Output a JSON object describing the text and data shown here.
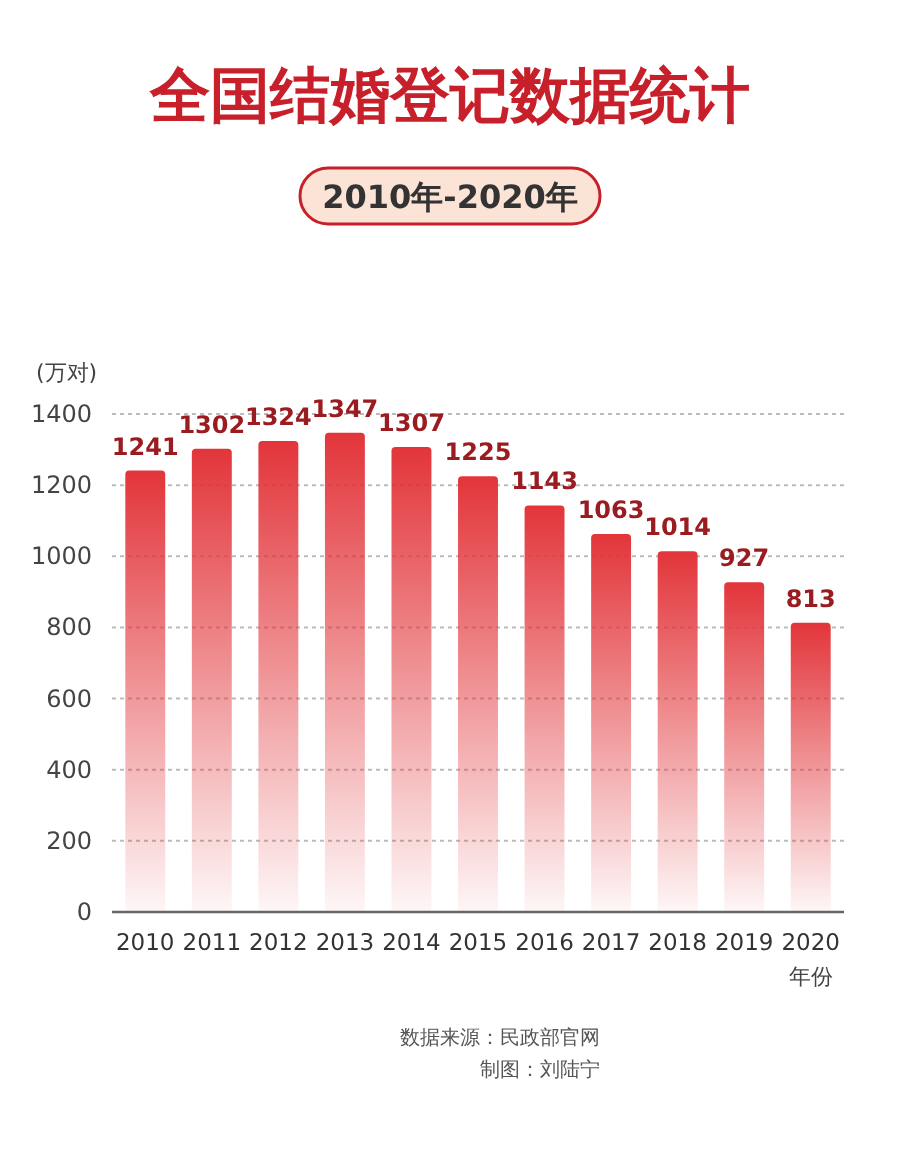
{
  "chart_data": {
    "type": "bar",
    "title": "全国结婚登记数据统计",
    "subtitle": "2010年-2020年",
    "ylabel": "(万对)",
    "xlabel": "年份",
    "categories": [
      "2010",
      "2011",
      "2012",
      "2013",
      "2014",
      "2015",
      "2016",
      "2017",
      "2018",
      "2019",
      "2020"
    ],
    "series": [
      {
        "color": "#e2353a",
        "values": [
          1241,
          1302,
          1324,
          1347,
          1307,
          1225,
          1143,
          1063,
          1014,
          927,
          813
        ]
      }
    ],
    "ylim": [
      0,
      1400
    ],
    "yticks": [
      0,
      200,
      400,
      600,
      800,
      1000,
      1200,
      1400
    ],
    "grid": "y",
    "data_labels": true,
    "annotations": [
      "数据来源：民政部官网",
      "制图：刘陆宁"
    ]
  }
}
